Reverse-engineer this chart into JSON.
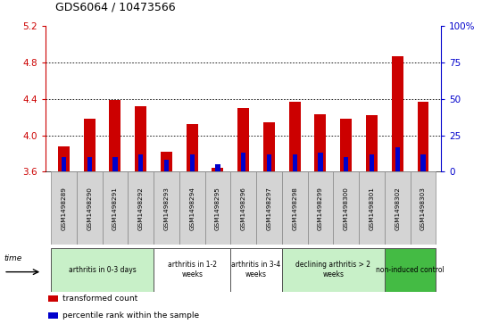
{
  "title": "GDS6064 / 10473566",
  "samples": [
    "GSM1498289",
    "GSM1498290",
    "GSM1498291",
    "GSM1498292",
    "GSM1498293",
    "GSM1498294",
    "GSM1498295",
    "GSM1498296",
    "GSM1498297",
    "GSM1498298",
    "GSM1498299",
    "GSM1498300",
    "GSM1498301",
    "GSM1498302",
    "GSM1498303"
  ],
  "transformed_count": [
    3.88,
    4.18,
    4.39,
    4.32,
    3.82,
    4.12,
    3.64,
    4.3,
    4.14,
    4.37,
    4.23,
    4.18,
    4.22,
    4.87,
    4.37
  ],
  "percentile_rank": [
    10,
    10,
    10,
    12,
    8,
    12,
    5,
    13,
    12,
    12,
    13,
    10,
    12,
    17,
    12
  ],
  "ylim_left": [
    3.6,
    5.2
  ],
  "ylim_right": [
    0,
    100
  ],
  "yticks_left": [
    3.6,
    4.0,
    4.4,
    4.8,
    5.2
  ],
  "yticks_right": [
    0,
    25,
    50,
    75,
    100
  ],
  "bar_base": 3.6,
  "left_color": "#cc0000",
  "right_color": "#0000cc",
  "groups": [
    {
      "label": "arthritis in 0-3 days",
      "indices": [
        0,
        1,
        2,
        3
      ],
      "color": "#c8f0c8"
    },
    {
      "label": "arthritis in 1-2\nweeks",
      "indices": [
        4,
        5,
        6
      ],
      "color": "#ffffff"
    },
    {
      "label": "arthritis in 3-4\nweeks",
      "indices": [
        7,
        8
      ],
      "color": "#ffffff"
    },
    {
      "label": "declining arthritis > 2\nweeks",
      "indices": [
        9,
        10,
        11,
        12
      ],
      "color": "#c8f0c8"
    },
    {
      "label": "non-induced control",
      "indices": [
        13,
        14
      ],
      "color": "#44bb44"
    }
  ],
  "legend_items": [
    {
      "label": "transformed count",
      "color": "#cc0000"
    },
    {
      "label": "percentile rank within the sample",
      "color": "#0000cc"
    }
  ],
  "left_tick_color": "#cc0000",
  "right_tick_color": "#0000cc",
  "bar_width": 0.45,
  "blue_bar_width": 0.18
}
